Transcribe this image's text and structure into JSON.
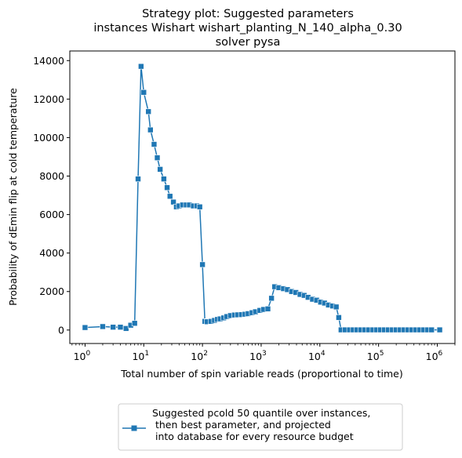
{
  "chart_data": {
    "type": "line",
    "title": [
      "Strategy plot: Suggested parameters",
      "instances Wishart wishart_planting_N_140_alpha_0.30",
      "solver pysa"
    ],
    "xlabel": "Total number of spin variable reads (proportional to time)",
    "ylabel": "Probability of dEmin flip at cold temperature",
    "xscale": "log",
    "xlim": [
      0.55,
      2000000
    ],
    "ylim": [
      -700,
      14500
    ],
    "xticks": [
      {
        "value": 1,
        "base": "10",
        "exp": "0"
      },
      {
        "value": 10,
        "base": "10",
        "exp": "1"
      },
      {
        "value": 100,
        "base": "10",
        "exp": "2"
      },
      {
        "value": 1000,
        "base": "10",
        "exp": "3"
      },
      {
        "value": 10000,
        "base": "10",
        "exp": "4"
      },
      {
        "value": 100000,
        "base": "10",
        "exp": "5"
      },
      {
        "value": 1000000,
        "base": "10",
        "exp": "6"
      }
    ],
    "yticks": [
      0,
      2000,
      4000,
      6000,
      8000,
      10000,
      12000,
      14000
    ],
    "grid": false,
    "legend_position": "below-center",
    "marker": "square",
    "color": "#1f77b4",
    "series": [
      {
        "name": "Suggested pcold 50 quantile over instances,\n then best parameter, and projected\n into database for every resource budget",
        "points": [
          [
            1,
            130
          ],
          [
            2,
            180
          ],
          [
            3,
            150
          ],
          [
            4,
            150
          ],
          [
            5,
            80
          ],
          [
            6,
            250
          ],
          [
            7,
            350
          ],
          [
            8,
            7850
          ],
          [
            9,
            13700
          ],
          [
            10,
            12350
          ],
          [
            12,
            11350
          ],
          [
            13,
            10400
          ],
          [
            15,
            9650
          ],
          [
            17,
            8950
          ],
          [
            19,
            8350
          ],
          [
            22,
            7850
          ],
          [
            25,
            7400
          ],
          [
            28,
            6950
          ],
          [
            32,
            6650
          ],
          [
            36,
            6400
          ],
          [
            40,
            6450
          ],
          [
            46,
            6500
          ],
          [
            53,
            6500
          ],
          [
            60,
            6500
          ],
          [
            70,
            6450
          ],
          [
            80,
            6450
          ],
          [
            90,
            6400
          ],
          [
            100,
            3400
          ],
          [
            110,
            450
          ],
          [
            120,
            430
          ],
          [
            140,
            450
          ],
          [
            160,
            500
          ],
          [
            180,
            550
          ],
          [
            200,
            580
          ],
          [
            230,
            630
          ],
          [
            260,
            700
          ],
          [
            300,
            750
          ],
          [
            350,
            780
          ],
          [
            400,
            790
          ],
          [
            460,
            800
          ],
          [
            530,
            820
          ],
          [
            600,
            850
          ],
          [
            700,
            900
          ],
          [
            800,
            950
          ],
          [
            950,
            1020
          ],
          [
            1100,
            1070
          ],
          [
            1300,
            1100
          ],
          [
            1500,
            1650
          ],
          [
            1700,
            2250
          ],
          [
            2000,
            2200
          ],
          [
            2400,
            2150
          ],
          [
            2800,
            2100
          ],
          [
            3300,
            2000
          ],
          [
            3900,
            1950
          ],
          [
            4600,
            1850
          ],
          [
            5400,
            1800
          ],
          [
            6300,
            1700
          ],
          [
            7500,
            1600
          ],
          [
            8800,
            1550
          ],
          [
            10300,
            1450
          ],
          [
            12000,
            1400
          ],
          [
            14000,
            1300
          ],
          [
            16500,
            1250
          ],
          [
            19000,
            1200
          ],
          [
            21000,
            650
          ],
          [
            23000,
            10
          ],
          [
            27000,
            10
          ],
          [
            32000,
            10
          ],
          [
            37000,
            10
          ],
          [
            43000,
            10
          ],
          [
            50000,
            10
          ],
          [
            58000,
            10
          ],
          [
            68000,
            10
          ],
          [
            80000,
            10
          ],
          [
            93000,
            10
          ],
          [
            108000,
            10
          ],
          [
            126000,
            10
          ],
          [
            147000,
            10
          ],
          [
            172000,
            10
          ],
          [
            200000,
            10
          ],
          [
            234000,
            10
          ],
          [
            273000,
            10
          ],
          [
            318000,
            10
          ],
          [
            371000,
            10
          ],
          [
            433000,
            10
          ],
          [
            505000,
            10
          ],
          [
            589000,
            10
          ],
          [
            687000,
            10
          ],
          [
            800000,
            10
          ],
          [
            1100000,
            10
          ]
        ]
      }
    ]
  }
}
